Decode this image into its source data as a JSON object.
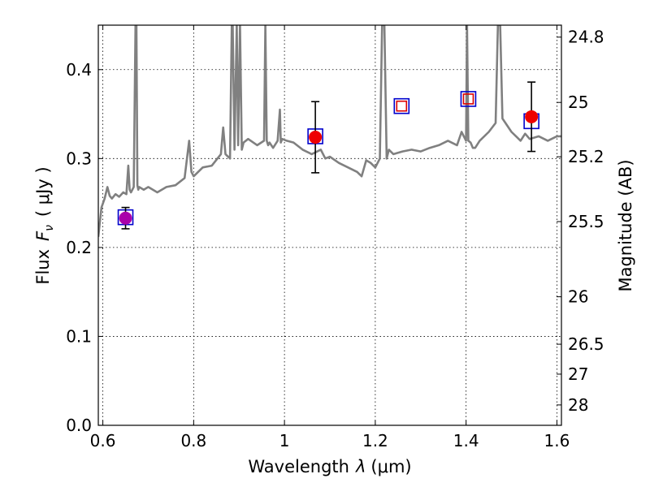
{
  "chart_data": {
    "type": "line",
    "xlabel": "Wavelength",
    "xlabel_symbol": "λ",
    "xlabel_unit": "(μm)",
    "ylabel": "Flux",
    "ylabel_symbol": "F",
    "ylabel_subscript": "ν",
    "ylabel_unit": "( μJy )",
    "y2label": "Magnitude (AB)",
    "xlim": [
      0.59,
      1.61
    ],
    "ylim": [
      0.0,
      0.45
    ],
    "grid": true,
    "x_ticks": [
      0.6,
      0.8,
      1.0,
      1.2,
      1.4,
      1.6
    ],
    "x_tick_labels": [
      "0.6",
      "0.8",
      "1",
      "1.2",
      "1.4",
      "1.6"
    ],
    "y_ticks": [
      0.0,
      0.1,
      0.2,
      0.3,
      0.4
    ],
    "y_tick_labels": [
      "0.0",
      "0.1",
      "0.2",
      "0.3",
      "0.4"
    ],
    "mag_ticks": [
      24.8,
      25.0,
      25.2,
      25.5,
      26.0,
      26.5,
      27.0,
      28.0
    ],
    "mag_tick_labels": [
      "24.8",
      "25",
      "25.2",
      "25.5",
      "26",
      "26.5",
      "27",
      "28"
    ],
    "spectrum": {
      "name": "model spectrum",
      "color": "#808080",
      "x": [
        0.59,
        0.597,
        0.604,
        0.61,
        0.615,
        0.62,
        0.628,
        0.636,
        0.645,
        0.652,
        0.656,
        0.659,
        0.662,
        0.668,
        0.672,
        0.674,
        0.676,
        0.678,
        0.68,
        0.69,
        0.7,
        0.72,
        0.74,
        0.76,
        0.78,
        0.79,
        0.795,
        0.8,
        0.82,
        0.84,
        0.86,
        0.865,
        0.87,
        0.88,
        0.884,
        0.886,
        0.89,
        0.895,
        0.898,
        0.902,
        0.906,
        0.91,
        0.92,
        0.94,
        0.955,
        0.958,
        0.961,
        0.964,
        0.967,
        0.975,
        0.985,
        0.99,
        0.992,
        0.995,
        1.005,
        1.02,
        1.04,
        1.06,
        1.08,
        1.09,
        1.1,
        1.12,
        1.14,
        1.16,
        1.17,
        1.18,
        1.19,
        1.2,
        1.21,
        1.215,
        1.218,
        1.22,
        1.225,
        1.23,
        1.24,
        1.26,
        1.28,
        1.3,
        1.32,
        1.34,
        1.36,
        1.38,
        1.39,
        1.4,
        1.402,
        1.405,
        1.41,
        1.415,
        1.42,
        1.43,
        1.45,
        1.465,
        1.47,
        1.475,
        1.48,
        1.5,
        1.52,
        1.53,
        1.54,
        1.56,
        1.58,
        1.6,
        1.61
      ],
      "y": [
        0.212,
        0.245,
        0.255,
        0.268,
        0.258,
        0.255,
        0.26,
        0.257,
        0.262,
        0.26,
        0.292,
        0.265,
        0.262,
        0.268,
        0.45,
        0.45,
        0.27,
        0.265,
        0.268,
        0.265,
        0.268,
        0.262,
        0.268,
        0.27,
        0.278,
        0.32,
        0.285,
        0.28,
        0.29,
        0.292,
        0.305,
        0.335,
        0.305,
        0.3,
        0.45,
        0.45,
        0.31,
        0.45,
        0.315,
        0.45,
        0.31,
        0.318,
        0.322,
        0.315,
        0.32,
        0.45,
        0.32,
        0.315,
        0.318,
        0.312,
        0.32,
        0.355,
        0.318,
        0.322,
        0.32,
        0.318,
        0.31,
        0.305,
        0.31,
        0.3,
        0.302,
        0.295,
        0.29,
        0.285,
        0.28,
        0.298,
        0.295,
        0.29,
        0.3,
        0.45,
        0.45,
        0.45,
        0.3,
        0.31,
        0.305,
        0.308,
        0.31,
        0.308,
        0.312,
        0.315,
        0.32,
        0.315,
        0.33,
        0.32,
        0.45,
        0.32,
        0.318,
        0.312,
        0.312,
        0.32,
        0.33,
        0.34,
        0.45,
        0.45,
        0.345,
        0.33,
        0.32,
        0.328,
        0.322,
        0.325,
        0.32,
        0.325,
        0.325
      ]
    },
    "series": [
      {
        "name": "open squares",
        "marker": "square",
        "filled": false,
        "color": "#0000cc",
        "x": [
          0.65,
          1.068,
          1.258,
          1.405,
          1.544
        ],
        "y": [
          0.234,
          0.325,
          0.359,
          0.367,
          0.342
        ]
      },
      {
        "name": "small open squares",
        "marker": "square-small",
        "filled": false,
        "color": "#dd0000",
        "x": [
          1.258,
          1.405
        ],
        "y": [
          0.359,
          0.367
        ]
      },
      {
        "name": "observed photometry",
        "marker": "circle",
        "filled": true,
        "color": "#ee0000",
        "x": [
          0.65,
          1.068,
          1.544
        ],
        "y": [
          0.233,
          0.324,
          0.347
        ],
        "point_colors": [
          "#aa00aa",
          "#ee0000",
          "#ee0000"
        ],
        "err_low": [
          0.221,
          0.284,
          0.308
        ],
        "err_high": [
          0.245,
          0.364,
          0.386
        ]
      }
    ]
  }
}
